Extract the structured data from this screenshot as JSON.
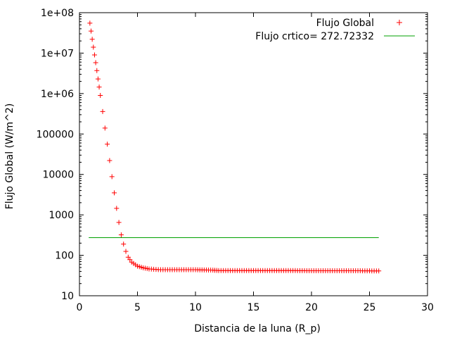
{
  "chart_data": {
    "type": "scatter",
    "xlabel": "Distancia de la luna (R_p)",
    "ylabel": "Flujo Global (W/m^2)",
    "x_ticks": [
      "0",
      "5",
      "10",
      "15",
      "20",
      "25",
      "30"
    ],
    "y_ticks": [
      "10",
      "100",
      "1000",
      "10000",
      "100000",
      "1e+06",
      "1e+07",
      "1e+08"
    ],
    "xlim": [
      0,
      30
    ],
    "ylim": [
      10,
      100000000
    ],
    "y_scale": "log",
    "grid": false,
    "legend_position": "top-right",
    "series": [
      {
        "name": "Flujo Global",
        "marker": "+",
        "color": "#ff0000",
        "x": [
          0.9,
          1.0,
          1.1,
          1.2,
          1.3,
          1.4,
          1.5,
          1.6,
          1.7,
          1.8,
          2.0,
          2.2,
          2.4,
          2.6,
          2.8,
          3.0,
          3.2,
          3.4,
          3.6,
          3.8,
          4.0,
          4.2,
          4.5,
          5.0,
          5.5,
          6.0,
          7.0,
          8.0,
          10.0,
          11.5,
          12.0,
          15.0,
          18.0,
          20.0,
          22.0,
          24.0,
          25.8
        ],
        "y": [
          55000000,
          35000000,
          22000000,
          14000000,
          9000000,
          5800000,
          3700000,
          2300000,
          1450000,
          900000,
          360000,
          140000,
          56000,
          22000,
          8800,
          3500,
          1450,
          650,
          320,
          190,
          125,
          90,
          68,
          54,
          49,
          46,
          44,
          44,
          44,
          43,
          42,
          42,
          42,
          41.5,
          41.5,
          41.5,
          41
        ]
      },
      {
        "name": "Flujo crtico= 272.72332",
        "marker": "line",
        "color": "#00a000",
        "x": [
          0.8,
          25.8
        ],
        "y": [
          272.72332,
          272.72332
        ]
      }
    ]
  }
}
